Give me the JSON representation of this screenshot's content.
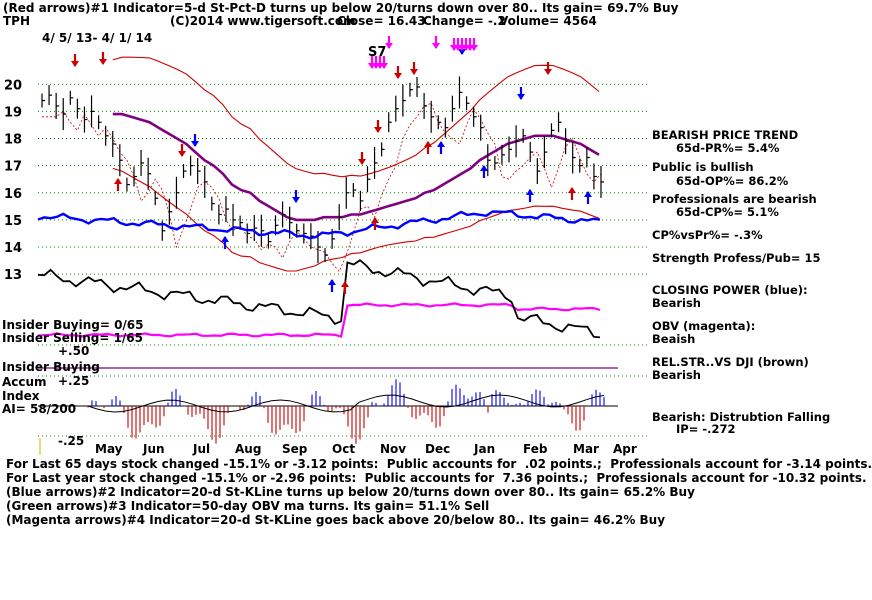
{
  "header": {
    "line1": "(Red arrows)#1 Indicator=5-d St-Pct-D turns up below 20/turns down over 80.. Its gain= 69.7% Buy",
    "ticker": "TPH",
    "copyright": "(C)2014 www.tigersoft.com",
    "close": "Close= 16.43",
    "change": "Change= -.2",
    "volume": "Volume= 4564",
    "daterange": "4/ 5/ 13- 4/ 1/ 14"
  },
  "right_panel": {
    "trend_title": "BEARISH PRICE TREND",
    "pr": "65d-PR%= 5.4%",
    "public": "Public is bullish",
    "op": "65d-OP%= 86.2%",
    "pros": "Professionals are bearish",
    "cp": "65d-CP%= 5.1%",
    "cpvspr": "CP%vsPr%= -.3%",
    "strength": "Strength Profess/Pub= 15",
    "closing_power": "CLOSING POWER (blue):",
    "closing_power_val": "Bearish",
    "obv": "OBV (magenta):",
    "obv_val": "Beaish",
    "relstr": "REL.STR..VS DJI (brown)",
    "relstr_val": "Bearish",
    "distrib": "Bearish: Distrubtion Falling",
    "ip": "IP= -.272"
  },
  "left_labels": {
    "insider_buying": "Insider Buying= 0/65",
    "insider_selling": "Insider Selling= 1/65",
    "p50": "+.50",
    "insider_buying2": "Insider Buying",
    "accum": "Accum",
    "p25": "+.25",
    "index": "Index",
    "ai": "AI= 58/200",
    "m25": "-.25"
  },
  "annotation_s7": "S7",
  "footer": {
    "line1": "For Last 65 days stock changed -15.1% or -3.12 points:  Public accounts for  .02 points.;  Professionals account for -3.14 points.",
    "line2": "For Last year stock changed -15.1% or -2.96 points:  Public accounts for  7.36 points.;  Professionals account for -10.32 points.",
    "line3": "(Blue arrows)#2 Indicator=20-d St-KLine turns up below 20/turns down over 80.. Its gain= 65.2% Buy",
    "line4": "(Green arrows)#3 Indicator=50-day OBV ma turns. Its gain= 51.1% Sell",
    "line5": "(Magenta arrows)#4 Indicator=20-d St-KLine goes back above 20/below 80.. Its gain= 46.2% Buy"
  },
  "colors": {
    "price": "#000000",
    "ma": "#800080",
    "band": "#cc0000",
    "closing_power": "#0000ff",
    "obv": "#ff00ff",
    "relstr": "#000000",
    "grid": "#008000",
    "accum_pos": "#0000ff",
    "accum_neg": "#cc0000"
  },
  "chart_data": {
    "type": "line",
    "y_ticks": [
      "20",
      "19",
      "18",
      "17",
      "16",
      "15",
      "14",
      "13"
    ],
    "y_values": [
      20,
      19,
      18,
      17,
      16,
      15,
      14,
      13
    ],
    "ylim": [
      12.6,
      20.6
    ],
    "x_ticks": [
      "May",
      "Jun",
      "Jul",
      "Aug",
      "Sep",
      "Oct",
      "Nov",
      "Dec",
      "Jan",
      "Feb",
      "Mar",
      "Apr"
    ],
    "series": [
      {
        "values": [
          19.4,
          19.6,
          19.2,
          18.9,
          19.5,
          19.1,
          18.7,
          19.0,
          18.6,
          18.1,
          17.8,
          17.2,
          16.3,
          16.6,
          17.1,
          16.7,
          15.8,
          14.6,
          15.3,
          16.0,
          16.8,
          17.0,
          16.8,
          16.4,
          15.6,
          15.2,
          15.4,
          15.0,
          14.9,
          14.5,
          14.7,
          14.6,
          14.2,
          14.8,
          15.2,
          14.9,
          14.6,
          14.5,
          14.4,
          14.0,
          13.7,
          14.3,
          15.1,
          16.0,
          16.1,
          15.7,
          16.5,
          17.1,
          17.6,
          18.6,
          19.1,
          19.4,
          19.8,
          19.9,
          19.2,
          18.8,
          18.6,
          18.4,
          19.1,
          19.7,
          19.3,
          18.8,
          18.4,
          17.2,
          17.1,
          17.4,
          17.6,
          17.9,
          18.1,
          17.5,
          16.8,
          17.5,
          18.3,
          18.6,
          17.9,
          17.3,
          17.0,
          17.3,
          16.6,
          16.4
        ]
      },
      {
        "values": [
          18.9,
          18.9,
          18.8,
          18.7,
          18.6,
          18.4,
          18.2,
          18.0,
          17.8,
          17.5,
          17.2,
          17.0,
          16.7,
          16.3,
          16.1,
          16.0,
          15.7,
          15.5,
          15.3,
          15.1,
          15.0,
          15.0,
          15.0,
          15.1,
          15.1,
          15.1,
          15.2,
          15.2,
          15.3,
          15.4,
          15.5,
          15.6,
          15.7,
          15.8,
          16.0,
          16.1,
          16.3,
          16.5,
          16.7,
          16.9,
          17.2,
          17.4,
          17.6,
          17.8,
          17.9,
          18.0,
          18.1,
          18.1,
          18.1,
          18.0,
          17.9,
          17.8,
          17.6,
          17.4
        ]
      }
    ]
  }
}
